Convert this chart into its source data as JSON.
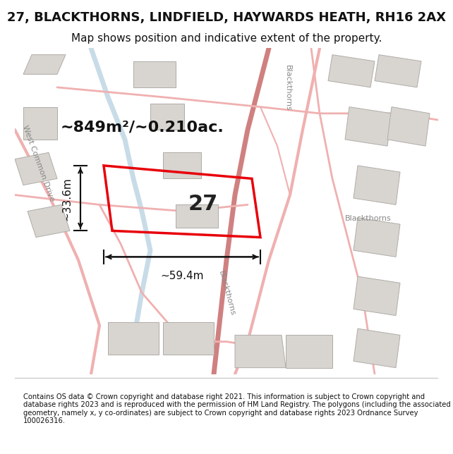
{
  "title": "27, BLACKTHORNS, LINDFIELD, HAYWARDS HEATH, RH16 2AX",
  "subtitle": "Map shows position and indicative extent of the property.",
  "title_fontsize": 13,
  "subtitle_fontsize": 11,
  "area_label": "~849m²/~0.210ac.",
  "property_number": "27",
  "dim_width": "~59.4m",
  "dim_height": "~33.6m",
  "footer_text": "Contains OS data © Crown copyright and database right 2021. This information is subject to Crown copyright and database rights 2023 and is reproduced with the permission of HM Land Registry. The polygons (including the associated geometry, namely x, y co-ordinates) are subject to Crown copyright and database rights 2023 Ordnance Survey 100026316.",
  "bg_color": "#f5f5f5",
  "map_bg": "#f0efed",
  "footer_bg": "#ffffff",
  "red_plot_color": "#e8000a",
  "road_color": "#f0b0b0",
  "road_color2": "#d08080",
  "building_fill": "#d8d5d0",
  "building_edge": "#b0aca8",
  "water_color": "#c8dce8",
  "dim_line_color": "#111111",
  "street_label_color": "#888888",
  "area_label_fontsize": 16,
  "property_number_fontsize": 22,
  "dim_fontsize": 11,
  "street_fontsize": 8
}
